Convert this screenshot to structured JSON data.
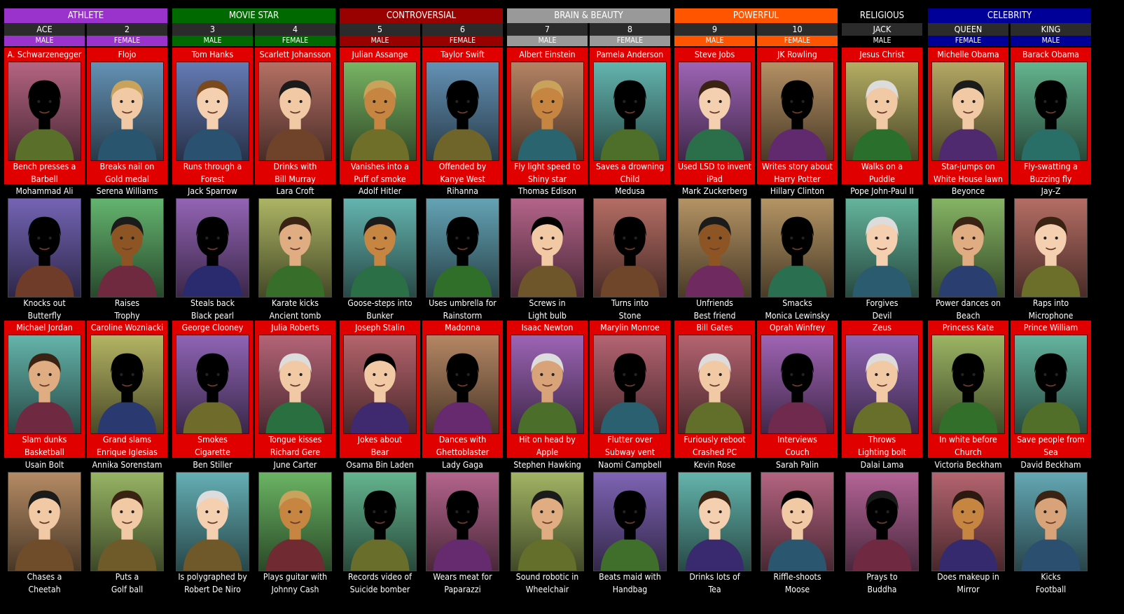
{
  "colors": {
    "athlete": "#9933cc",
    "movie_star": "#006a00",
    "controversial": "#990000",
    "brain_beauty": "#999999",
    "powerful": "#ff5500",
    "religious": "#000000",
    "celebrity": "#000099",
    "card_red": "#e00000",
    "column_header_bg": "#2b2b2b"
  },
  "categories": [
    {
      "label": "ATHLETE",
      "color": "#9933cc"
    },
    {
      "label": "MOVIE STAR",
      "color": "#006a00"
    },
    {
      "label": "CONTROVERSIAL",
      "color": "#990000"
    },
    {
      "label": "BRAIN & BEAUTY",
      "color": "#999999"
    },
    {
      "label": "POWERFUL",
      "color": "#ff5500"
    },
    {
      "label": "RELIGIOUS",
      "color": "#000000"
    },
    {
      "label": "CELEBRITY",
      "color": "#000099"
    }
  ],
  "columns": [
    {
      "label": "ACE",
      "gender": "MALE"
    },
    {
      "label": "2",
      "gender": "FEMALE"
    },
    {
      "label": "3",
      "gender": "MALE"
    },
    {
      "label": "4",
      "gender": "FEMALE"
    },
    {
      "label": "5",
      "gender": "MALE"
    },
    {
      "label": "6",
      "gender": "FEMALE"
    },
    {
      "label": "7",
      "gender": "MALE"
    },
    {
      "label": "8",
      "gender": "FEMALE"
    },
    {
      "label": "9",
      "gender": "MALE"
    },
    {
      "label": "10",
      "gender": "FEMALE"
    },
    {
      "label": "JACK",
      "gender": "MALE"
    },
    {
      "label": "QUEEN",
      "gender": "FEMALE"
    },
    {
      "label": "KING",
      "gender": "MALE"
    }
  ],
  "rows": [
    {
      "cards": [
        {
          "name": "A. Schwarzenegger",
          "line1": "Bench presses a",
          "line2": "Barbell"
        },
        {
          "name": "Flojo",
          "line1": "Breaks nail on",
          "line2": "Gold medal"
        },
        {
          "name": "Tom Hanks",
          "line1": "Runs through a",
          "line2": "Forest"
        },
        {
          "name": "Scarlett Johansson",
          "line1": "Drinks with",
          "line2": "Bill Murray"
        },
        {
          "name": "Julian Assange",
          "line1": "Vanishes into a",
          "line2": "Puff of smoke"
        },
        {
          "name": "Taylor Swift",
          "line1": "Offended by",
          "line2": "Kanye West"
        },
        {
          "name": "Albert Einstein",
          "line1": "Fly light speed to",
          "line2": "Shiny star"
        },
        {
          "name": "Pamela Anderson",
          "line1": "Saves a drowning",
          "line2": "Child"
        },
        {
          "name": "Steve Jobs",
          "line1": "Used LSD to invent",
          "line2": "iPad"
        },
        {
          "name": "JK Rowling",
          "line1": "Writes story about",
          "line2": "Harry Potter"
        },
        {
          "name": "Jesus Christ",
          "line1": "Walks on a",
          "line2": "Puddle"
        },
        {
          "name": "Michelle Obama",
          "line1": "Star-jumps on",
          "line2": "White House lawn"
        },
        {
          "name": "Barack Obama",
          "line1": "Fly-swatting a",
          "line2": "Buzzing fly"
        }
      ]
    },
    {
      "cards": [
        {
          "name": "Mohammad Ali",
          "line1": "Knocks out",
          "line2": "Butterfly"
        },
        {
          "name": "Serena Williams",
          "line1": "Raises",
          "line2": "Trophy"
        },
        {
          "name": "Jack Sparrow",
          "line1": "Steals back",
          "line2": "Black pearl"
        },
        {
          "name": "Lara Croft",
          "line1": "Karate kicks",
          "line2": "Ancient tomb"
        },
        {
          "name": "Adolf Hitler",
          "line1": "Goose-steps into",
          "line2": "Bunker"
        },
        {
          "name": "Rihanna",
          "line1": "Uses umbrella for",
          "line2": "Rainstorm"
        },
        {
          "name": "Thomas Edison",
          "line1": "Screws in",
          "line2": "Light bulb"
        },
        {
          "name": "Medusa",
          "line1": "Turns into",
          "line2": "Stone"
        },
        {
          "name": "Mark Zuckerberg",
          "line1": "Unfriends",
          "line2": "Best friend"
        },
        {
          "name": "Hillary Clinton",
          "line1": "Smacks",
          "line2": "Monica Lewinsky"
        },
        {
          "name": "Pope John-Paul II",
          "line1": "Forgives",
          "line2": "Devil"
        },
        {
          "name": "Beyonce",
          "line1": "Power dances on",
          "line2": "Beach"
        },
        {
          "name": "Jay-Z",
          "line1": "Raps into",
          "line2": "Microphone"
        }
      ]
    },
    {
      "cards": [
        {
          "name": "Michael Jordan",
          "line1": "Slam dunks",
          "line2": "Basketball"
        },
        {
          "name": "Caroline Wozniacki",
          "line1": "Grand slams",
          "line2": "Enrique Iglesias"
        },
        {
          "name": "George Clooney",
          "line1": "Smokes",
          "line2": "Cigarette"
        },
        {
          "name": "Julia Roberts",
          "line1": "Tongue kisses",
          "line2": "Richard Gere"
        },
        {
          "name": "Joseph Stalin",
          "line1": "Jokes about",
          "line2": "Bear"
        },
        {
          "name": "Madonna",
          "line1": "Dances with",
          "line2": "Ghettoblaster"
        },
        {
          "name": "Isaac Newton",
          "line1": "Hit on head by",
          "line2": "Apple"
        },
        {
          "name": "Marylin Monroe",
          "line1": "Flutter over",
          "line2": "Subway vent"
        },
        {
          "name": "Bill Gates",
          "line1": "Furiously reboot",
          "line2": "Crashed PC"
        },
        {
          "name": "Oprah Winfrey",
          "line1": "Interviews",
          "line2": "Couch"
        },
        {
          "name": "Zeus",
          "line1": "Throws",
          "line2": "Lighting bolt"
        },
        {
          "name": "Princess Kate",
          "line1": "In white before",
          "line2": "Church"
        },
        {
          "name": "Prince William",
          "line1": "Save people from",
          "line2": "Sea"
        }
      ]
    },
    {
      "cards": [
        {
          "name": "Usain Bolt",
          "line1": "Chases a",
          "line2": "Cheetah"
        },
        {
          "name": "Annika Sorenstam",
          "line1": "Puts a",
          "line2": "Golf ball"
        },
        {
          "name": "Ben Stiller",
          "line1": "Is polygraphed by",
          "line2": "Robert De Niro"
        },
        {
          "name": "June Carter",
          "line1": "Plays guitar with",
          "line2": "Johnny Cash"
        },
        {
          "name": "Osama Bin Laden",
          "line1": "Records video of",
          "line2": "Suicide bomber"
        },
        {
          "name": "Lady Gaga",
          "line1": "Wears meat for",
          "line2": "Paparazzi"
        },
        {
          "name": "Stephen Hawking",
          "line1": "Sound robotic in",
          "line2": "Wheelchair"
        },
        {
          "name": "Naomi Campbell",
          "line1": "Beats maid with",
          "line2": "Handbag"
        },
        {
          "name": "Kevin Rose",
          "line1": "Drinks lots of",
          "line2": "Tea"
        },
        {
          "name": "Sarah Palin",
          "line1": "Riffle-shoots",
          "line2": "Moose"
        },
        {
          "name": "Dalai Lama",
          "line1": "Prays to",
          "line2": "Buddha"
        },
        {
          "name": "Victoria Beckham",
          "line1": "Does makeup in",
          "line2": "Mirror"
        },
        {
          "name": "David Beckham",
          "line1": "Kicks",
          "line2": "Football"
        }
      ]
    }
  ]
}
